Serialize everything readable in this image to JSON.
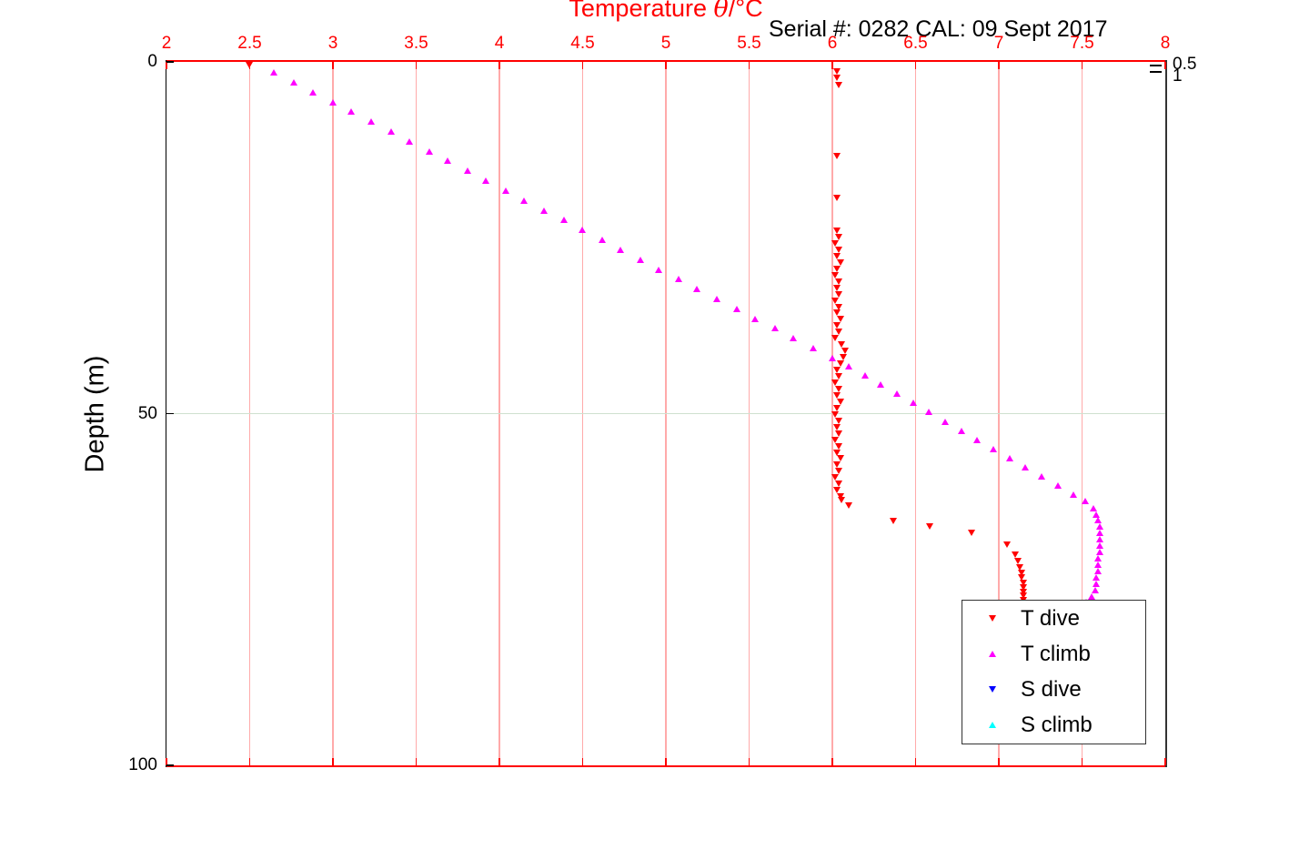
{
  "figure": {
    "background": "#ffffff"
  },
  "title": {
    "prefix": "Temperature ",
    "theta": "θ",
    "suffix": "/°C",
    "color": "#ff0000"
  },
  "annotation": {
    "serial_cal": "Serial #: 0282  CAL: 09 Sept 2017"
  },
  "y_axis_label": "Depth (m)",
  "right_axis": {
    "labels": [
      "0.5",
      "1"
    ]
  },
  "axes": {
    "x": {
      "position": "top",
      "color": "#ff0000",
      "grid_color": "#ffaaaa",
      "values": [
        2,
        2.5,
        3,
        3.5,
        4,
        4.5,
        5,
        5.5,
        6,
        6.5,
        7,
        7.5,
        8
      ],
      "labels": [
        "2",
        "2.5",
        "3",
        "3.5",
        "4",
        "4.5",
        "5",
        "5.5",
        "6",
        "6.5",
        "7",
        "7.5",
        "8"
      ],
      "range": [
        2,
        8
      ]
    },
    "y": {
      "position": "left",
      "color": "#000000",
      "grid_color": "#cfe0cf",
      "values": [
        0,
        50,
        100
      ],
      "labels": [
        "0",
        "50",
        "100"
      ],
      "range": [
        0,
        100
      ],
      "direction": "increasing-downward"
    }
  },
  "chart_data": {
    "type": "scatter",
    "title": "Temperature θ/°C",
    "xlabel": "Temperature θ/°C (top axis)",
    "ylabel": "Depth (m)",
    "x_range": [
      2,
      8
    ],
    "y_range": [
      0,
      100
    ],
    "grid": true,
    "legend_position": "bottom-right",
    "series": [
      {
        "name": "T dive",
        "marker": "triangle-down",
        "color": "#ff0000",
        "points": [
          [
            2.5,
            0.4
          ],
          [
            6.03,
            1.3
          ],
          [
            6.03,
            2.3
          ],
          [
            6.04,
            3.3
          ],
          [
            6.03,
            13.4
          ],
          [
            6.03,
            19.3
          ],
          [
            6.03,
            24.0
          ],
          [
            6.04,
            24.9
          ],
          [
            6.02,
            25.8
          ],
          [
            6.04,
            26.7
          ],
          [
            6.03,
            27.6
          ],
          [
            6.05,
            28.5
          ],
          [
            6.03,
            29.4
          ],
          [
            6.02,
            30.3
          ],
          [
            6.04,
            31.2
          ],
          [
            6.03,
            32.1
          ],
          [
            6.04,
            33.0
          ],
          [
            6.02,
            33.9
          ],
          [
            6.04,
            34.8
          ],
          [
            6.03,
            35.7
          ],
          [
            6.05,
            36.6
          ],
          [
            6.03,
            37.5
          ],
          [
            6.04,
            38.4
          ],
          [
            6.02,
            39.3
          ],
          [
            6.06,
            40.2
          ],
          [
            6.08,
            41.1
          ],
          [
            6.07,
            42.0
          ],
          [
            6.05,
            42.9
          ],
          [
            6.03,
            43.8
          ],
          [
            6.04,
            44.7
          ],
          [
            6.02,
            45.6
          ],
          [
            6.04,
            46.5
          ],
          [
            6.03,
            47.4
          ],
          [
            6.05,
            48.3
          ],
          [
            6.03,
            49.2
          ],
          [
            6.02,
            50.1
          ],
          [
            6.04,
            51.0
          ],
          [
            6.03,
            51.9
          ],
          [
            6.04,
            52.8
          ],
          [
            6.02,
            53.7
          ],
          [
            6.04,
            54.6
          ],
          [
            6.03,
            55.5
          ],
          [
            6.05,
            56.4
          ],
          [
            6.03,
            57.3
          ],
          [
            6.04,
            58.2
          ],
          [
            6.02,
            59.1
          ],
          [
            6.04,
            60.0
          ],
          [
            6.03,
            60.9
          ],
          [
            6.05,
            61.8
          ],
          [
            6.06,
            62.3
          ],
          [
            6.1,
            63.1
          ],
          [
            6.37,
            65.3
          ],
          [
            6.59,
            66.0
          ],
          [
            6.84,
            67.0
          ],
          [
            7.05,
            68.6
          ],
          [
            7.1,
            70.0
          ],
          [
            7.12,
            71.0
          ],
          [
            7.13,
            71.9
          ],
          [
            7.14,
            72.6
          ],
          [
            7.14,
            73.3
          ],
          [
            7.15,
            74.0
          ],
          [
            7.15,
            74.7
          ],
          [
            7.15,
            75.3
          ],
          [
            7.15,
            75.9
          ],
          [
            7.15,
            76.5
          ],
          [
            7.14,
            76.9
          ]
        ]
      },
      {
        "name": "T climb",
        "marker": "triangle-up",
        "color": "#ff00ff",
        "points": [
          [
            2.65,
            1.5
          ],
          [
            2.77,
            2.9
          ],
          [
            2.88,
            4.3
          ],
          [
            3.0,
            5.7
          ],
          [
            3.11,
            7.1
          ],
          [
            3.23,
            8.5
          ],
          [
            3.35,
            9.9
          ],
          [
            3.46,
            11.3
          ],
          [
            3.58,
            12.7
          ],
          [
            3.69,
            14.1
          ],
          [
            3.81,
            15.5
          ],
          [
            3.92,
            16.9
          ],
          [
            4.04,
            18.3
          ],
          [
            4.15,
            19.7
          ],
          [
            4.27,
            21.1
          ],
          [
            4.39,
            22.5
          ],
          [
            4.5,
            23.9
          ],
          [
            4.62,
            25.3
          ],
          [
            4.73,
            26.7
          ],
          [
            4.85,
            28.1
          ],
          [
            4.96,
            29.5
          ],
          [
            5.08,
            30.9
          ],
          [
            5.19,
            32.3
          ],
          [
            5.31,
            33.7
          ],
          [
            5.43,
            35.1
          ],
          [
            5.54,
            36.5
          ],
          [
            5.66,
            37.9
          ],
          [
            5.77,
            39.3
          ],
          [
            5.89,
            40.7
          ],
          [
            6.0,
            42.1
          ],
          [
            6.1,
            43.3
          ],
          [
            6.2,
            44.6
          ],
          [
            6.29,
            45.9
          ],
          [
            6.39,
            47.2
          ],
          [
            6.49,
            48.5
          ],
          [
            6.58,
            49.8
          ],
          [
            6.68,
            51.1
          ],
          [
            6.78,
            52.4
          ],
          [
            6.87,
            53.7
          ],
          [
            6.97,
            55.0
          ],
          [
            7.07,
            56.3
          ],
          [
            7.16,
            57.6
          ],
          [
            7.26,
            58.9
          ],
          [
            7.36,
            60.2
          ],
          [
            7.45,
            61.5
          ],
          [
            7.52,
            62.4
          ],
          [
            7.57,
            63.4
          ],
          [
            7.59,
            64.3
          ],
          [
            7.6,
            65.2
          ],
          [
            7.61,
            66.1
          ],
          [
            7.61,
            67.0
          ],
          [
            7.61,
            67.9
          ],
          [
            7.61,
            68.8
          ],
          [
            7.61,
            69.7
          ],
          [
            7.6,
            70.6
          ],
          [
            7.6,
            71.5
          ],
          [
            7.6,
            72.4
          ],
          [
            7.59,
            73.3
          ],
          [
            7.59,
            74.2
          ],
          [
            7.58,
            75.1
          ],
          [
            7.56,
            76.0
          ],
          [
            7.53,
            76.8
          ]
        ]
      },
      {
        "name": "S dive",
        "marker": "triangle-down",
        "color": "#0000ff",
        "points": []
      },
      {
        "name": "S climb",
        "marker": "triangle-up",
        "color": "#00ffff",
        "points": []
      }
    ]
  }
}
